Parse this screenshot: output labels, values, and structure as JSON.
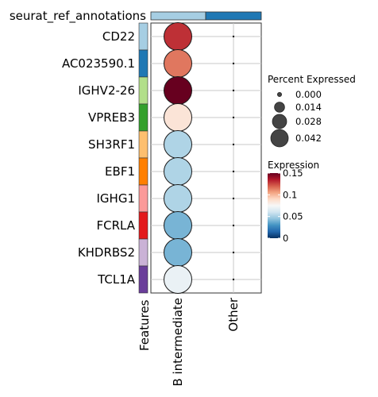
{
  "chart_data": {
    "type": "dotplot",
    "annotation_label": "seurat_ref_annotations",
    "annotation_colors": [
      "#a6cee3",
      "#1f78b4"
    ],
    "features": [
      "CD22",
      "AC023590.1",
      "IGHV2-26",
      "VPREB3",
      "SH3RF1",
      "EBF1",
      "IGHG1",
      "FCRLA",
      "KHDRBS2",
      "TCL1A"
    ],
    "feature_colors": [
      "#a6cee3",
      "#1f78b4",
      "#b2df8a",
      "#33a02c",
      "#fdbf6f",
      "#ff7f00",
      "#fb9a99",
      "#e31a1c",
      "#cab2d6",
      "#6a3d9a"
    ],
    "groups": [
      "B intermediate",
      "Other"
    ],
    "xlabel_features": "Features",
    "series": [
      {
        "name": "B intermediate",
        "percent_expressed": [
          0.045,
          0.045,
          0.045,
          0.045,
          0.045,
          0.045,
          0.045,
          0.045,
          0.045,
          0.045
        ],
        "expression": [
          0.13,
          0.115,
          0.152,
          0.085,
          0.052,
          0.052,
          0.052,
          0.04,
          0.04,
          0.07
        ]
      },
      {
        "name": "Other",
        "percent_expressed": [
          0.0,
          0.0,
          0.0,
          0.0,
          0.0,
          0.0,
          0.0,
          0.0,
          0.0,
          0.0
        ],
        "expression": [
          0.0,
          0.0,
          0.0,
          0.0,
          0.0,
          0.0,
          0.0,
          0.0,
          0.0,
          0.0
        ]
      }
    ],
    "size_legend": {
      "title": "Percent Expressed",
      "labels": [
        "0.000",
        "0.014",
        "0.028",
        "0.042"
      ],
      "values": [
        0.0,
        0.014,
        0.028,
        0.042
      ]
    },
    "color_legend": {
      "title": "Expression",
      "labels": [
        "0.15",
        "0.1",
        "0.05",
        "0"
      ],
      "values": [
        0.15,
        0.1,
        0.05,
        0.0
      ],
      "range": [
        0,
        0.15
      ],
      "palette": [
        "#053061",
        "#2166ac",
        "#4393c3",
        "#92c5de",
        "#d1e5f0",
        "#f7f7f7",
        "#fddbc7",
        "#f4a582",
        "#d6604d",
        "#b2182b",
        "#67001f"
      ]
    }
  }
}
